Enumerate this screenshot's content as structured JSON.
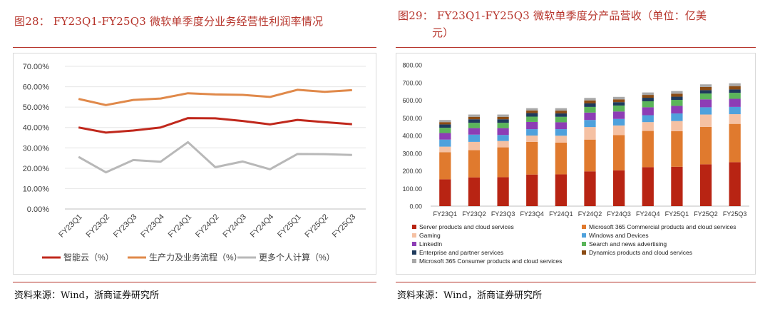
{
  "left": {
    "title": "图28：  FY23Q1-FY25Q3 微软单季度分业务经营性利润率情况",
    "source": "资料来源：Wind，浙商证券研究所"
  },
  "right": {
    "title_line1": "图29：  FY23Q1-FY25Q3 微软单季度分产品营收（单位：亿美",
    "title_line2": "元）",
    "source": "资料来源：Wind，浙商证券研究所"
  },
  "chart_data": [
    {
      "type": "line",
      "categories": [
        "FY23Q1",
        "FY23Q2",
        "FY23Q3",
        "FY23Q4",
        "FY24Q1",
        "FY24Q2",
        "FY24Q3",
        "FY24Q4",
        "FY25Q1",
        "FY25Q2",
        "FY25Q3"
      ],
      "ylim": [
        0,
        70
      ],
      "ytick_labels": [
        "0.00%",
        "10.00%",
        "20.00%",
        "30.00%",
        "40.00%",
        "50.00%",
        "60.00%",
        "70.00%"
      ],
      "series": [
        {
          "name": "智能云（%）",
          "color": "#c0281c",
          "values": [
            40.0,
            37.5,
            38.5,
            40.0,
            44.6,
            44.5,
            43.2,
            41.5,
            43.7,
            42.6,
            41.6
          ]
        },
        {
          "name": "生产力及业务流程（%）",
          "color": "#e0894a",
          "values": [
            54.0,
            51.0,
            53.5,
            54.2,
            56.8,
            56.2,
            56.0,
            55.0,
            58.5,
            57.5,
            58.3
          ]
        },
        {
          "name": "更多个人计算（%）",
          "color": "#b8b8b8",
          "values": [
            25.6,
            18.0,
            24.0,
            23.2,
            32.8,
            20.5,
            23.3,
            19.5,
            27.0,
            26.9,
            26.5
          ]
        }
      ]
    },
    {
      "type": "bar",
      "stacked": true,
      "categories": [
        "FY23Q1",
        "FY23Q2",
        "FY23Q3",
        "FY23Q4",
        "FY24Q1",
        "FY24Q2",
        "FY24Q3",
        "FY24Q4",
        "FY25Q1",
        "FY25Q2",
        "FY25Q3"
      ],
      "ylim": [
        0,
        800
      ],
      "ytick_labels": [
        "0.00",
        "100.00",
        "200.00",
        "300.00",
        "400.00",
        "500.00",
        "600.00",
        "700.00",
        "800.00"
      ],
      "series": [
        {
          "name": "Server products and cloud services",
          "color": "#b82413",
          "values": [
            152,
            163,
            164,
            179,
            180,
            197,
            203,
            221,
            223,
            237,
            249
          ]
        },
        {
          "name": "Microsoft 365 Commercial products and cloud services",
          "color": "#e07a2e",
          "values": [
            153,
            154,
            169,
            185,
            180,
            180,
            199,
            205,
            202,
            212,
            217
          ]
        },
        {
          "name": "Gaming",
          "color": "#f5c1a3",
          "values": [
            32,
            47,
            36,
            36,
            39,
            71,
            55,
            50,
            57,
            70,
            55
          ]
        },
        {
          "name": "Windows and Devices",
          "color": "#4ea1dc",
          "values": [
            40,
            41,
            34,
            36,
            37,
            40,
            37,
            39,
            43,
            41,
            41
          ]
        },
        {
          "name": "LinkedIn",
          "color": "#8d3db5",
          "values": [
            37,
            37,
            39,
            41,
            39,
            42,
            42,
            45,
            43,
            45,
            46
          ]
        },
        {
          "name": "Search and news advertising",
          "color": "#5bb55a",
          "values": [
            30,
            30,
            30,
            30,
            31,
            32,
            34,
            34,
            34,
            33,
            34
          ]
        },
        {
          "name": "Enterprise and partner services",
          "color": "#1e3a5c",
          "values": [
            19,
            20,
            20,
            20,
            19,
            20,
            19,
            20,
            18,
            19,
            19
          ]
        },
        {
          "name": "Dynamics products and cloud services",
          "color": "#8a4b14",
          "values": [
            13,
            14,
            14,
            15,
            16,
            17,
            16,
            16,
            17,
            18,
            19
          ]
        },
        {
          "name": "Microsoft 365 Consumer products and cloud services",
          "color": "#a8a8a8",
          "values": [
            12,
            13,
            13,
            13,
            14,
            14,
            14,
            14,
            15,
            15,
            16
          ]
        }
      ]
    }
  ]
}
